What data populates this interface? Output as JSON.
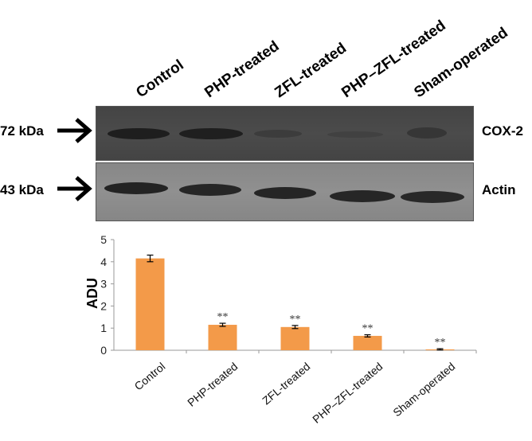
{
  "blot": {
    "lanes": [
      "Control",
      "PHP-treated",
      "ZFL-treated",
      "PHP–ZFL-treated",
      "Sham-operated"
    ],
    "cox": {
      "weight": "72 kDa",
      "protein": "COX-2"
    },
    "actin": {
      "weight": "43 kDa",
      "protein": "Actin"
    }
  },
  "chart_data": {
    "type": "bar",
    "categories": [
      "Control",
      "PHP-treated",
      "ZFL-treated",
      "PHP–ZFL-treated",
      "Sham-operated"
    ],
    "values": [
      4.15,
      1.15,
      1.05,
      0.65,
      0.04
    ],
    "errors": [
      0.15,
      0.07,
      0.07,
      0.05,
      0.03
    ],
    "annotations": [
      "",
      "**",
      "**",
      "**",
      "**"
    ],
    "ylabel": "ADU",
    "ylim": [
      0,
      5
    ],
    "yticks": [
      "0",
      "1",
      "2",
      "3",
      "4",
      "5"
    ],
    "bar_color": "#f39a49",
    "grid": false
  }
}
